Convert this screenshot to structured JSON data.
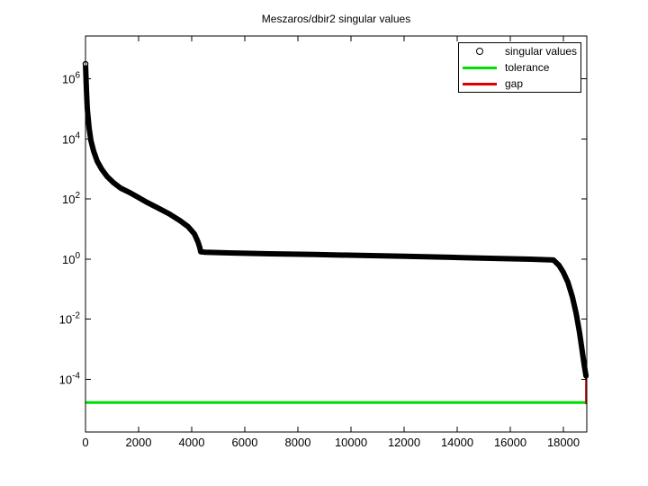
{
  "title": "Meszaros/dbir2 singular values",
  "colors": {
    "singular_values": "#000000",
    "tolerance": "#00dd00",
    "gap": "#dd0000",
    "axis": "#000000",
    "background": "#ffffff"
  },
  "legend": {
    "items": [
      {
        "label": "singular values",
        "marker": "circle",
        "color": "#000000"
      },
      {
        "label": "tolerance",
        "marker": "line",
        "color": "#00dd00"
      },
      {
        "label": "gap",
        "marker": "line",
        "color": "#dd0000"
      }
    ]
  },
  "chart_data": {
    "type": "line",
    "title": "Meszaros/dbir2 singular values",
    "xlabel": "",
    "ylabel": "",
    "grid": false,
    "legend_position": "top-right",
    "x_axis": {
      "ticks": [
        0,
        2000,
        4000,
        6000,
        8000,
        10000,
        12000,
        14000,
        16000,
        18000
      ],
      "lim": [
        0,
        18880
      ]
    },
    "y_axis": {
      "scale": "log",
      "tick_exponents": [
        6,
        4,
        2,
        0,
        -2,
        -4
      ],
      "lim_log10": [
        -5.75,
        7.42
      ]
    },
    "series": [
      {
        "name": "singular values",
        "type": "scatter-line",
        "color": "#000000",
        "points": [
          [
            0,
            3100000
          ],
          [
            34,
            460000
          ],
          [
            68,
            100000
          ],
          [
            136,
            23000
          ],
          [
            203,
            8900
          ],
          [
            305,
            3900
          ],
          [
            441,
            1800
          ],
          [
            610,
            980
          ],
          [
            814,
            560
          ],
          [
            1051,
            350
          ],
          [
            1322,
            230
          ],
          [
            1627,
            170
          ],
          [
            1932,
            120
          ],
          [
            2305,
            78
          ],
          [
            2712,
            51
          ],
          [
            3152,
            32
          ],
          [
            3559,
            19
          ],
          [
            3864,
            12
          ],
          [
            4102,
            6.9
          ],
          [
            4237,
            3.7
          ],
          [
            4305,
            2.4
          ],
          [
            4339,
            1.75
          ],
          [
            4508,
            1.7
          ],
          [
            5254,
            1.62
          ],
          [
            6949,
            1.5
          ],
          [
            8644,
            1.42
          ],
          [
            10339,
            1.33
          ],
          [
            12034,
            1.24
          ],
          [
            13729,
            1.15
          ],
          [
            15424,
            1.06
          ],
          [
            16780,
            0.99
          ],
          [
            17627,
            0.93
          ],
          [
            17831,
            0.62
          ],
          [
            18000,
            0.36
          ],
          [
            18169,
            0.17
          ],
          [
            18339,
            0.055
          ],
          [
            18475,
            0.016
          ],
          [
            18610,
            0.0035
          ],
          [
            18712,
            0.00083
          ],
          [
            18780,
            0.00032
          ],
          [
            18814,
            0.0002
          ],
          [
            18850,
            0.00013
          ]
        ]
      },
      {
        "name": "tolerance",
        "type": "hline",
        "color": "#00dd00",
        "value": 1.7e-05
      },
      {
        "name": "gap",
        "type": "vline",
        "color": "#dd0000",
        "x": 18850,
        "y_from": 0.00013,
        "y_to": 1.5e-05
      }
    ]
  }
}
